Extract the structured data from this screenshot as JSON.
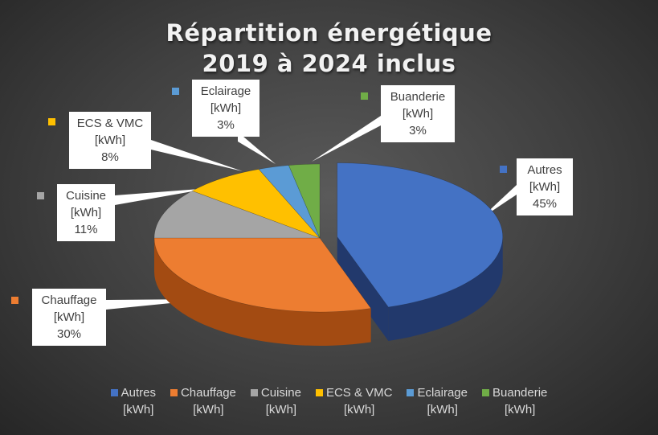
{
  "chart_data": {
    "type": "pie",
    "title_lines": [
      "Répartition énergétique",
      "2019 à 2024 inclus"
    ],
    "unit": "[kWh]",
    "slices": [
      {
        "name": "Autres",
        "unit": "[kWh]",
        "pct_label": "45%",
        "value": 45,
        "color": "#4472c4",
        "dark": "#22396c",
        "exploded": true
      },
      {
        "name": "Chauffage",
        "unit": "[kWh]",
        "pct_label": "30%",
        "value": 30,
        "color": "#ed7d31",
        "dark": "#a34b12",
        "exploded": false
      },
      {
        "name": "Cuisine",
        "unit": "[kWh]",
        "pct_label": "11%",
        "value": 11,
        "color": "#a5a5a5",
        "dark": "#5e5e5e",
        "exploded": false
      },
      {
        "name": "ECS & VMC",
        "unit": "[kWh]",
        "pct_label": "8%",
        "value": 8,
        "color": "#ffc000",
        "dark": "#9e7600",
        "exploded": false
      },
      {
        "name": "Eclairage",
        "unit": "[kWh]",
        "pct_label": "3%",
        "value": 3,
        "color": "#5b9bd5",
        "dark": "#2c5a85",
        "exploded": false
      },
      {
        "name": "Buanderie",
        "unit": "[kWh]",
        "pct_label": "3%",
        "value": 3,
        "color": "#70ad47",
        "dark": "#3f6e22",
        "exploded": false
      }
    ],
    "legend_placement": "bottom"
  }
}
